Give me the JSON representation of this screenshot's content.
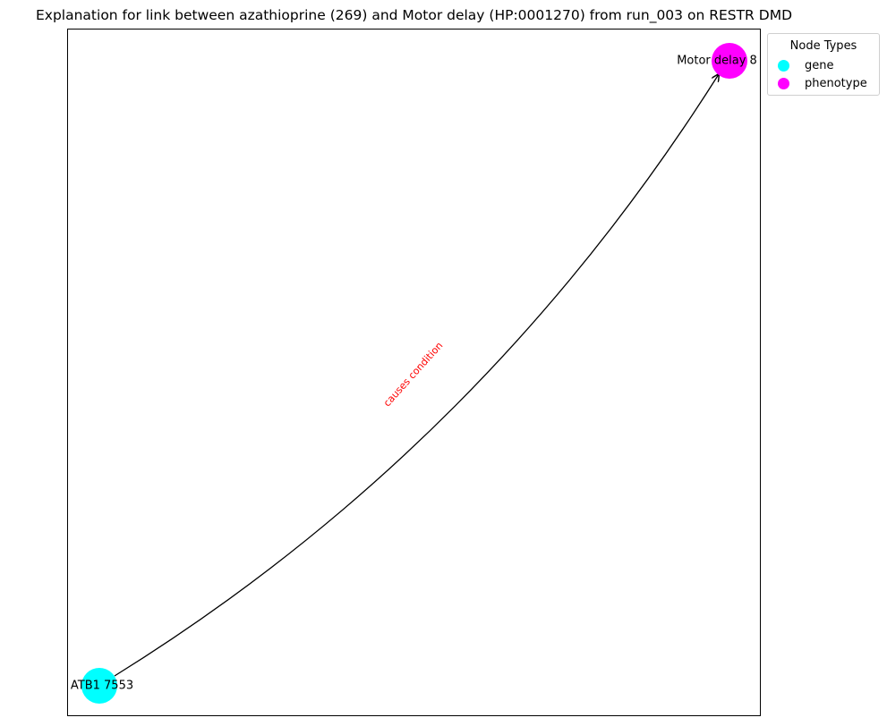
{
  "title": "Explanation for link between azathioprine (269) and Motor delay (HP:0001270) from run_003 on RESTR DMD",
  "legend": {
    "title": "Node Types",
    "items": [
      {
        "label": "gene",
        "color": "#00ffff"
      },
      {
        "label": "phenotype",
        "color": "#ff00ff"
      }
    ]
  },
  "nodes": [
    {
      "label": "ATB1 7553",
      "type": "gene",
      "color": "#00ffff"
    },
    {
      "label": "Motor delay 8",
      "type": "phenotype",
      "color": "#ff00ff"
    }
  ],
  "edges": [
    {
      "label": "causes condition",
      "color": "#ff0000"
    }
  ]
}
